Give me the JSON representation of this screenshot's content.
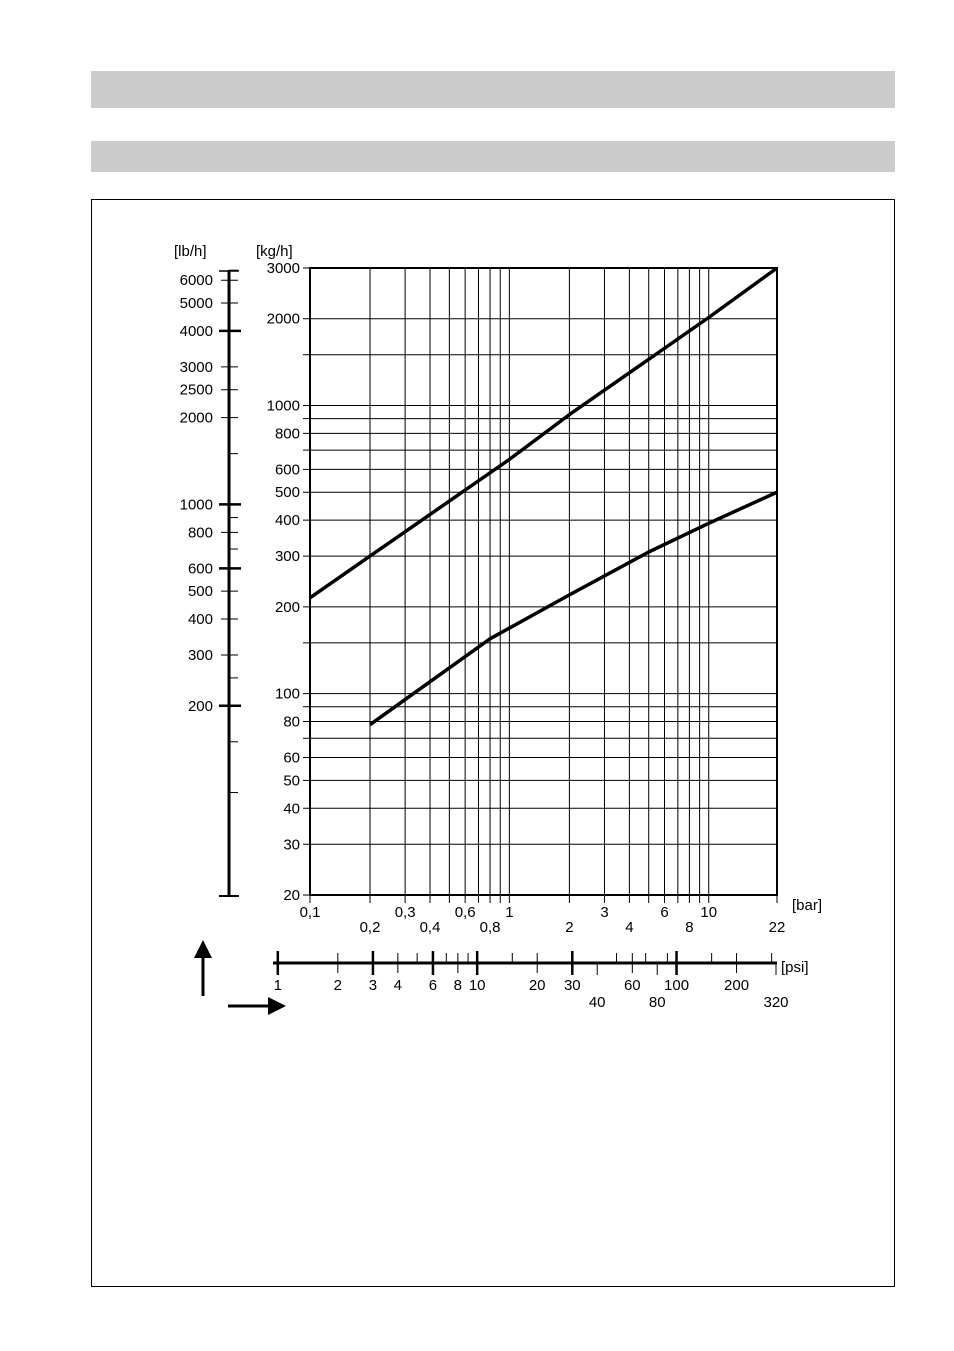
{
  "chart_data": {
    "type": "line",
    "x_axis": {
      "unit": "[bar]",
      "scale": "log",
      "range": [
        0.1,
        22
      ],
      "tick_labels_upper": [
        "0,1",
        "0,3",
        "0,6",
        "1",
        "3",
        "6",
        "10"
      ],
      "tick_labels_lower": [
        "0,2",
        "0,4",
        "0,8",
        "2",
        "4",
        "8",
        "22"
      ],
      "grid_values": [
        0.1,
        0.2,
        0.3,
        0.4,
        0.5,
        0.6,
        0.7,
        0.8,
        0.9,
        1,
        2,
        3,
        4,
        5,
        6,
        7,
        8,
        9,
        10,
        22
      ]
    },
    "y_axis": {
      "unit": "[kg/h]",
      "scale": "log",
      "range": [
        20,
        3000
      ],
      "tick_labels": [
        "3000",
        "2000",
        "1000",
        "800",
        "600",
        "500",
        "400",
        "300",
        "200",
        "100",
        "80",
        "60",
        "50",
        "40",
        "30",
        "20"
      ],
      "grid_values": [
        20,
        30,
        40,
        50,
        60,
        70,
        80,
        90,
        100,
        150,
        200,
        300,
        400,
        500,
        600,
        700,
        800,
        900,
        1000,
        1500,
        2000,
        3000
      ]
    },
    "lb_axis": {
      "unit": "[lb/h]",
      "tick_labels": [
        "6000",
        "5000",
        "4000",
        "3000",
        "2500",
        "2000",
        "1000",
        "800",
        "600",
        "500",
        "400",
        "300",
        "200"
      ],
      "major_ticks": [
        "4000",
        "1000",
        "600",
        "200"
      ]
    },
    "psi_axis": {
      "unit": "[psi]",
      "tick_labels_upper": [
        "1",
        "2",
        "3",
        "4",
        "6",
        "8",
        "10",
        "20",
        "30",
        "60",
        "100",
        "200"
      ],
      "tick_labels_lower": [
        "40",
        "80",
        "320"
      ],
      "major_ticks": [
        "1",
        "3",
        "6",
        "10",
        "30",
        "100"
      ]
    },
    "series": [
      {
        "x": [
          0.1,
          0.2,
          1,
          2,
          10,
          22
        ],
        "y": [
          215,
          300,
          650,
          930,
          2020,
          3000
        ]
      },
      {
        "x": [
          0.2,
          0.8,
          2,
          5,
          10,
          22
        ],
        "y": [
          78,
          155,
          220,
          310,
          390,
          500
        ]
      }
    ],
    "grid": true,
    "legend": "none"
  }
}
